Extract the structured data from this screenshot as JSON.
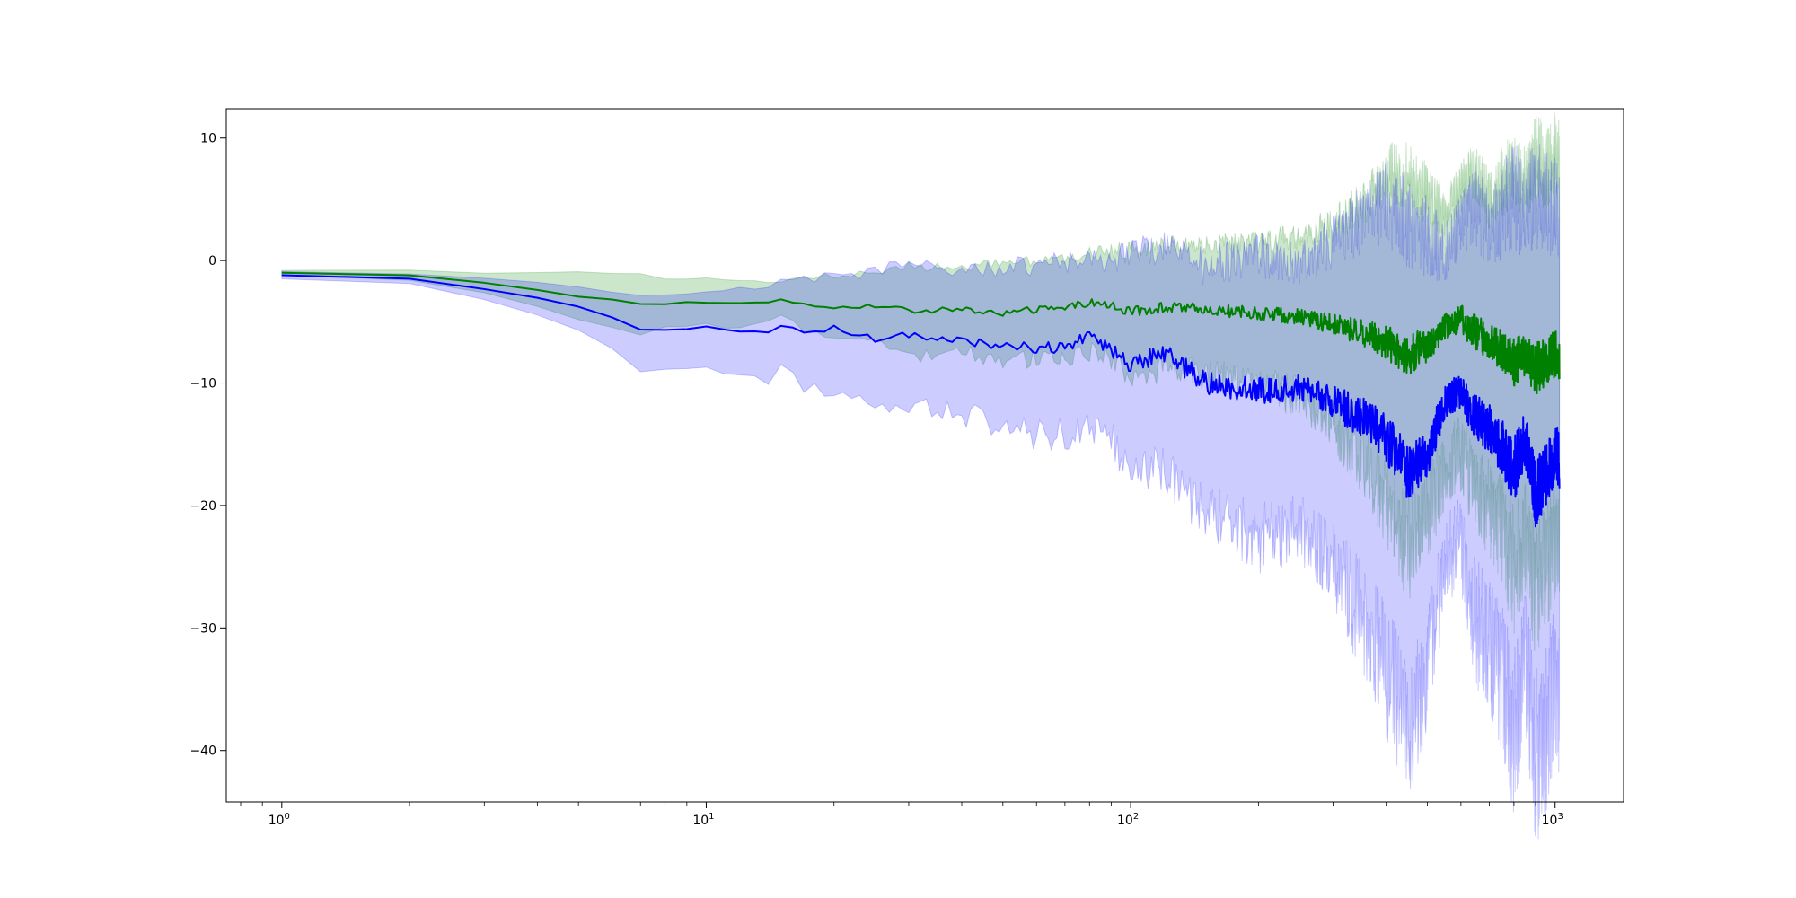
{
  "chart_data": {
    "type": "line",
    "title": "",
    "xlabel": "",
    "ylabel": "",
    "xscale": "log",
    "xlim": [
      0.74,
      1450
    ],
    "ylim": [
      -44.2,
      12.4
    ],
    "grid": false,
    "legend": "none",
    "x_ticks": [
      {
        "base": "10",
        "exp": "0"
      },
      {
        "base": "10",
        "exp": "1"
      },
      {
        "base": "10",
        "exp": "2"
      },
      {
        "base": "10",
        "exp": "3"
      }
    ],
    "y_ticks": [
      "10",
      "0",
      "−10",
      "−20",
      "−30",
      "−40"
    ],
    "series": [
      {
        "color": "#008000",
        "band_color": "#008000",
        "x": [
          1,
          2,
          3,
          4,
          5,
          6,
          7,
          8,
          10,
          12,
          14,
          15,
          17,
          20,
          25,
          30,
          40,
          50,
          60,
          70,
          80,
          90,
          100,
          120,
          150,
          200,
          250,
          300,
          350,
          400,
          450,
          500,
          550,
          600,
          650,
          700,
          750,
          800,
          850,
          900,
          950,
          1000,
          1024
        ],
        "mean": [
          -1.0,
          -1.2,
          -1.8,
          -2.4,
          -2.9,
          -3.2,
          -3.6,
          -3.5,
          -3.4,
          -3.5,
          -3.4,
          -3.1,
          -3.6,
          -3.8,
          -3.7,
          -4.1,
          -4.0,
          -4.3,
          -4.0,
          -3.9,
          -3.4,
          -3.7,
          -4.2,
          -3.8,
          -4.0,
          -4.3,
          -4.6,
          -5.2,
          -5.9,
          -6.6,
          -7.8,
          -6.8,
          -5.5,
          -4.8,
          -5.9,
          -6.6,
          -7.3,
          -8.3,
          -7.6,
          -8.9,
          -8.2,
          -7.6,
          -8.0
        ],
        "upper": [
          -0.8,
          -0.8,
          -1.0,
          -1.0,
          -0.9,
          -1.1,
          -1.2,
          -1.5,
          -1.5,
          -1.6,
          -1.7,
          -1.8,
          -1.4,
          -1.2,
          -0.9,
          -0.4,
          -0.7,
          -0.2,
          -0.1,
          0.2,
          0.6,
          0.8,
          0.9,
          1.3,
          1.3,
          1.5,
          2.0,
          3.0,
          4.5,
          7.5,
          6.8,
          5.5,
          4.0,
          6.0,
          7.2,
          5.0,
          6.5,
          7.8,
          6.2,
          8.5,
          7.5,
          8.8,
          8.0
        ],
        "lower": [
          -1.2,
          -1.6,
          -2.6,
          -3.8,
          -4.9,
          -5.3,
          -6.0,
          -5.5,
          -5.3,
          -5.4,
          -5.1,
          -4.4,
          -5.8,
          -6.4,
          -6.5,
          -7.8,
          -7.3,
          -8.4,
          -7.9,
          -8.0,
          -7.4,
          -8.2,
          -9.3,
          -8.9,
          -9.3,
          -10.1,
          -11.2,
          -13.4,
          -16.3,
          -19.6,
          -23.5,
          -20.9,
          -17.0,
          -15.6,
          -19.0,
          -20.2,
          -22.0,
          -25.4,
          -22.6,
          -27.3,
          -24.9,
          -23.0,
          -24.0
        ]
      },
      {
        "color": "#0000ff",
        "band_color": "#0000ff",
        "x": [
          1,
          2,
          3,
          4,
          5,
          6,
          7,
          8,
          10,
          12,
          14,
          15,
          17,
          20,
          25,
          30,
          40,
          50,
          60,
          70,
          80,
          90,
          100,
          120,
          150,
          200,
          250,
          300,
          350,
          400,
          450,
          500,
          550,
          600,
          650,
          700,
          750,
          800,
          850,
          900,
          950,
          1000,
          1024
        ],
        "mean": [
          -1.2,
          -1.5,
          -2.3,
          -3.0,
          -3.8,
          -4.7,
          -5.7,
          -5.7,
          -5.4,
          -5.8,
          -5.9,
          -5.3,
          -6.0,
          -5.5,
          -6.5,
          -6.0,
          -6.6,
          -6.9,
          -7.2,
          -7.0,
          -6.3,
          -7.3,
          -8.5,
          -7.5,
          -10.0,
          -10.6,
          -10.4,
          -11.5,
          -12.8,
          -14.5,
          -17.3,
          -15.8,
          -11.6,
          -10.5,
          -12.9,
          -13.7,
          -15.2,
          -17.1,
          -14.5,
          -19.0,
          -17.7,
          -15.6,
          -16.6
        ],
        "upper": [
          -0.9,
          -1.1,
          -1.4,
          -1.8,
          -2.2,
          -2.6,
          -3.0,
          -2.8,
          -2.5,
          -2.4,
          -2.0,
          -1.6,
          -1.5,
          -1.2,
          -0.9,
          -0.3,
          -1.0,
          -0.6,
          -0.4,
          -0.2,
          0.2,
          -0.2,
          0.8,
          1.0,
          -0.5,
          0.5,
          -0.3,
          1.5,
          3.5,
          5.0,
          3.0,
          2.0,
          0.5,
          3.0,
          4.5,
          2.5,
          4.0,
          5.5,
          3.8,
          6.0,
          5.0,
          4.5,
          4.0
        ],
        "lower": [
          -1.5,
          -1.9,
          -3.2,
          -4.4,
          -5.8,
          -7.2,
          -9.0,
          -9.0,
          -8.9,
          -9.6,
          -9.8,
          -8.9,
          -10.3,
          -10.6,
          -11.8,
          -12.0,
          -12.5,
          -13.6,
          -14.3,
          -14.2,
          -13.2,
          -14.7,
          -16.8,
          -16.8,
          -20.6,
          -22.7,
          -21.8,
          -25.0,
          -29.0,
          -33.5,
          -38.0,
          -34.0,
          -24.5,
          -23.0,
          -29.5,
          -31.5,
          -34.0,
          -39.0,
          -32.0,
          -41.0,
          -38.5,
          -34.0,
          -37.0
        ]
      }
    ]
  }
}
